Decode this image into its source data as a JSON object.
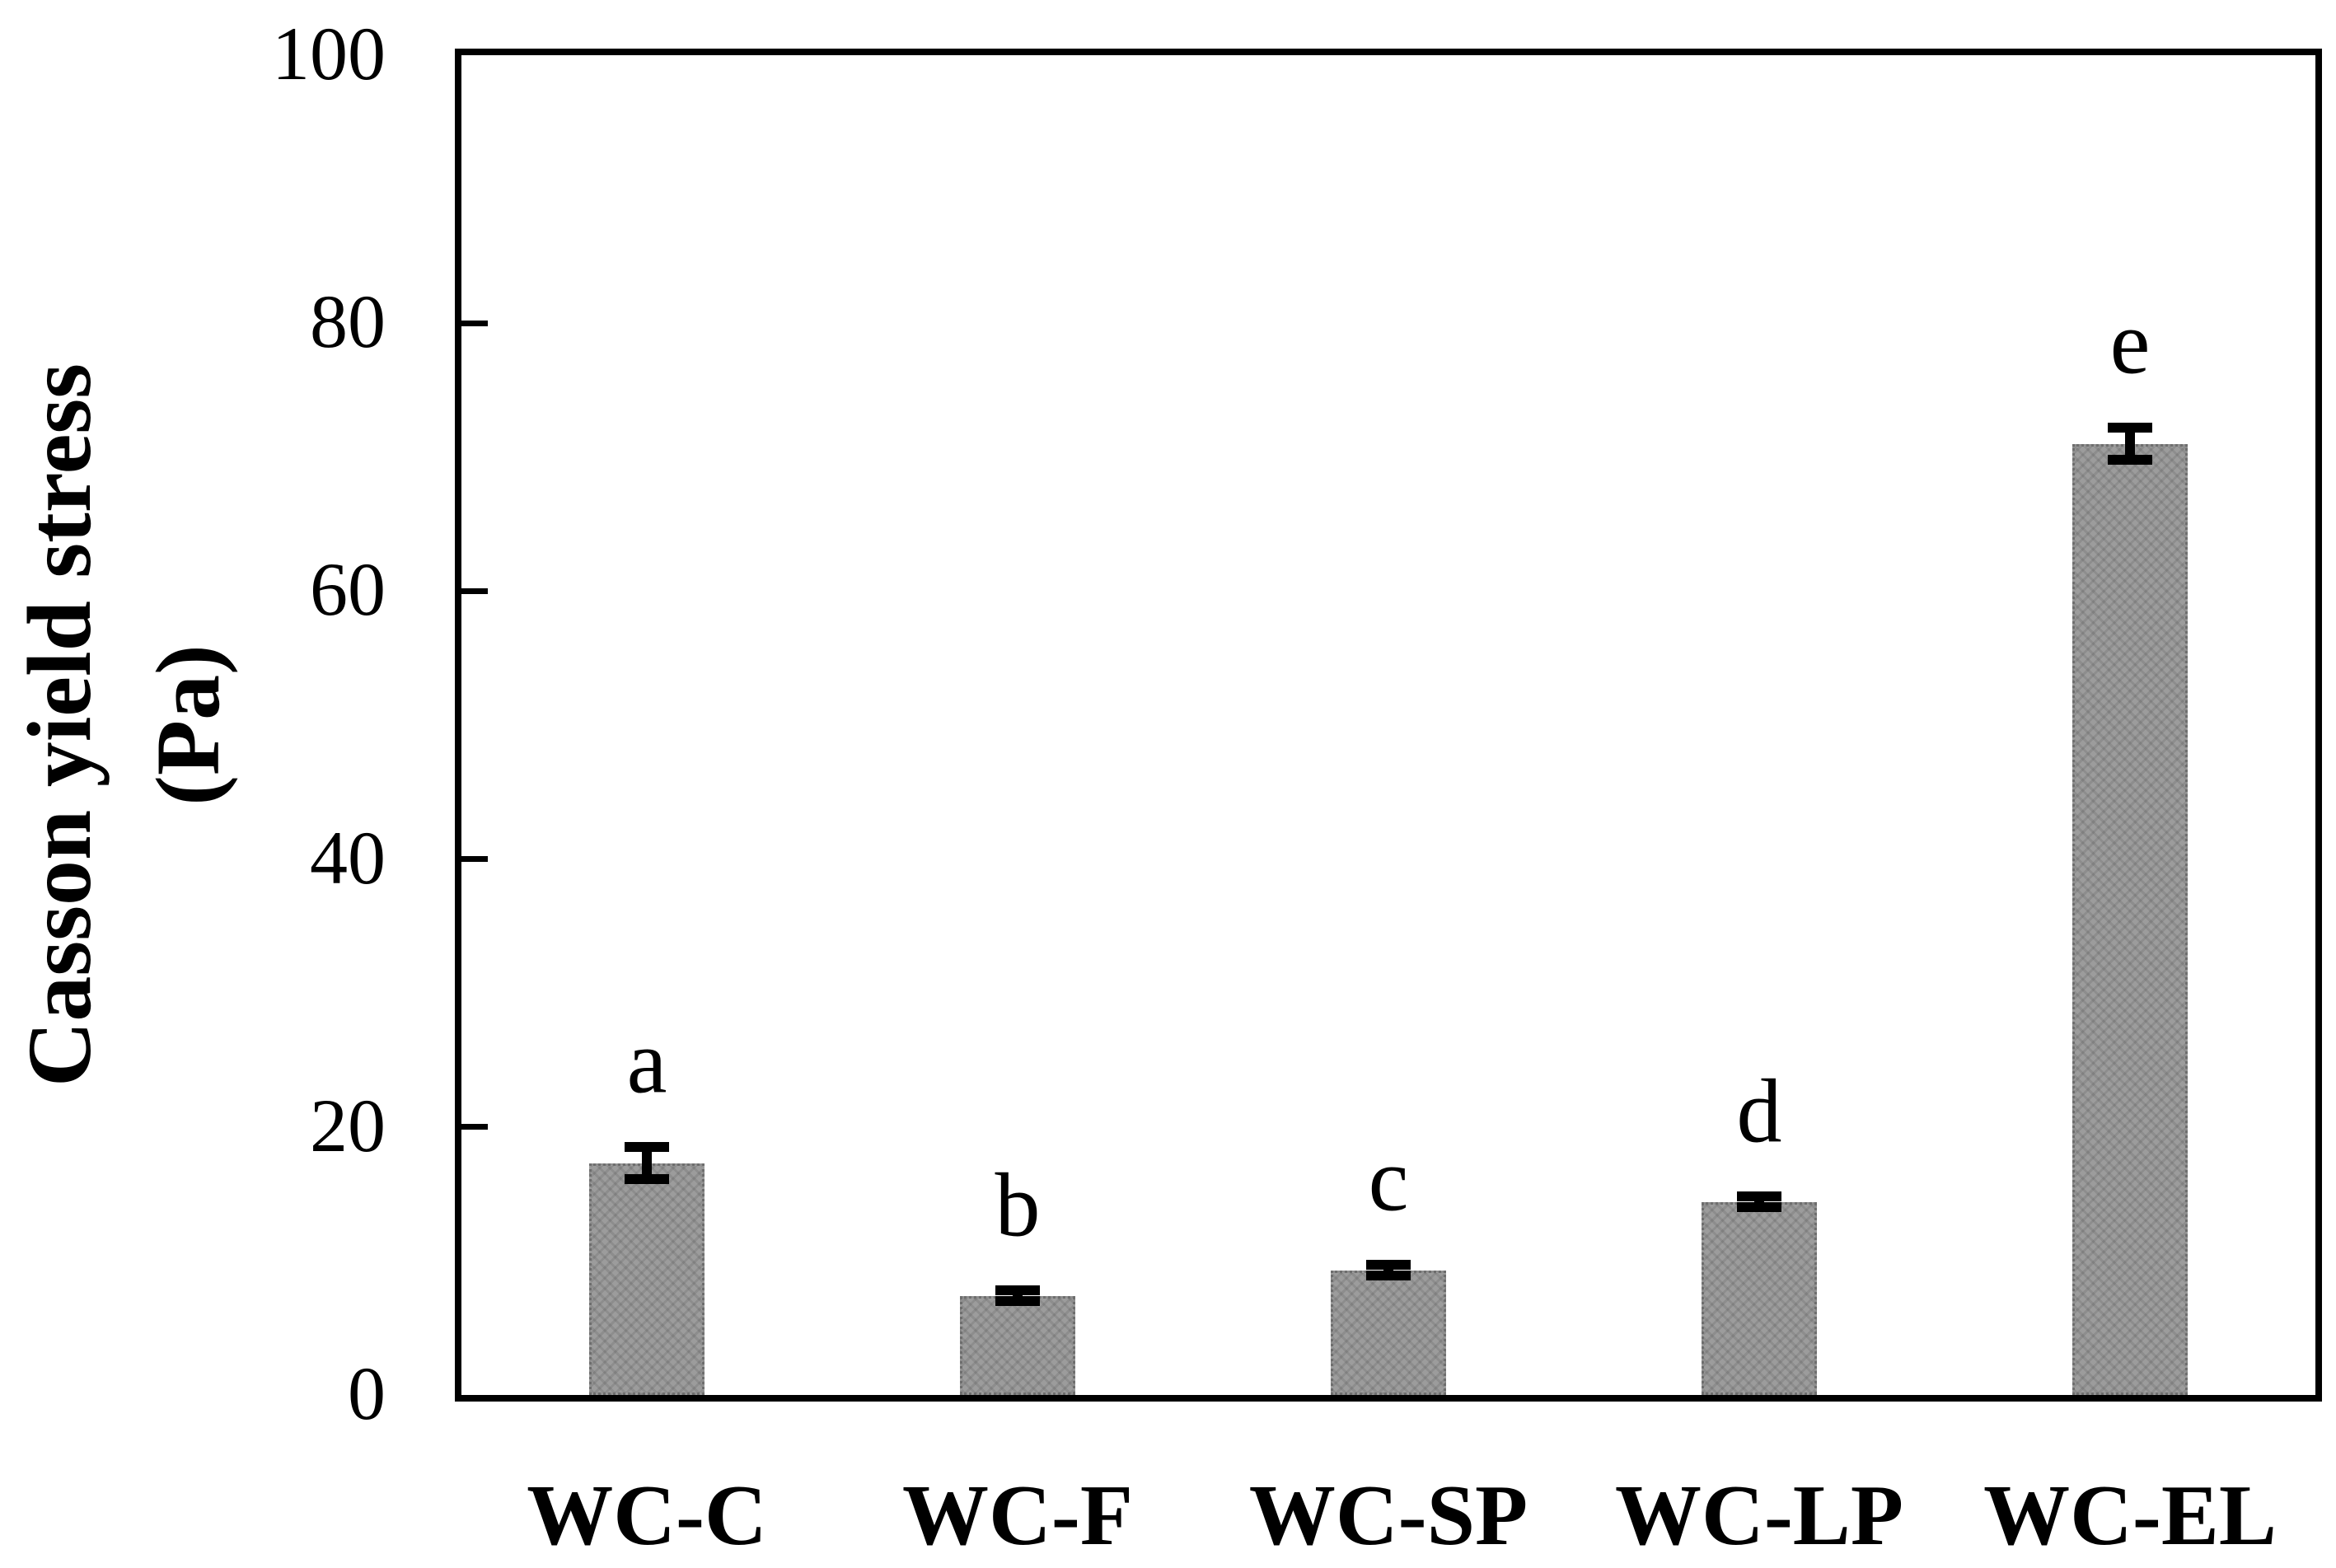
{
  "figure": {
    "background": "#ffffff",
    "y_axis_title_line1": "Casson yield stress",
    "y_axis_title_line2": "(Pa)"
  },
  "chart_data": {
    "type": "bar",
    "title": "",
    "xlabel": "",
    "ylabel": "Casson yield stress (Pa)",
    "ylim": [
      0,
      100
    ],
    "yticks": [
      0,
      20,
      40,
      60,
      80,
      100
    ],
    "grid": false,
    "legend_position": "none",
    "bar_fill_color": "#9c9c9c",
    "bar_border_color": "#6e6e6e",
    "axis_color": "#000000",
    "categories": [
      "WC-C",
      "WC-F",
      "WC-SP",
      "WC-LP",
      "WC-EL"
    ],
    "series": [
      {
        "name": "Casson yield stress",
        "values": [
          17.3,
          7.4,
          9.3,
          14.4,
          71.0
        ],
        "errors": [
          1.2,
          0.4,
          0.4,
          0.4,
          1.2
        ]
      }
    ],
    "significance_letters": [
      "a",
      "b",
      "c",
      "d",
      "e"
    ]
  }
}
